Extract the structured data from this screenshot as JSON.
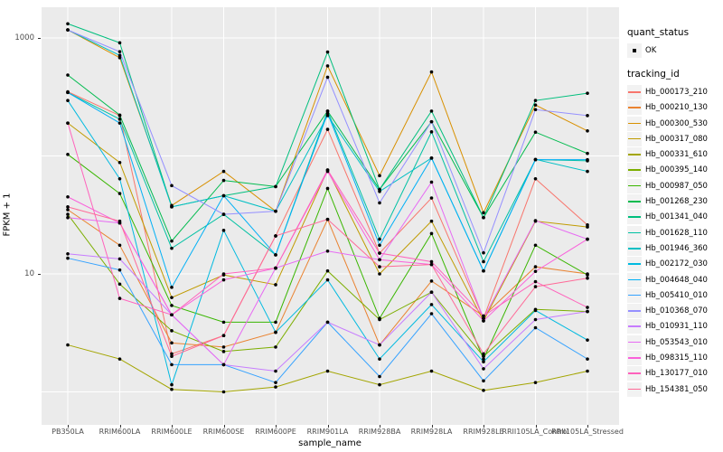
{
  "figure": {
    "panel_bg": "#EBEBEB",
    "grid_color": "#FFFFFF",
    "tick_label_color": "#4D4D4D",
    "point_color": "#000000"
  },
  "axes": {
    "x_title": "sample_name",
    "y_title": "FPKM + 1",
    "y_tick_labels": [
      "1000",
      "10"
    ]
  },
  "legend": {
    "quant_status_title": "quant_status",
    "quant_status_items": [
      "OK"
    ],
    "tracking_id_title": "tracking_id",
    "key_bg": "#F2F2F2"
  },
  "chart_data": {
    "type": "line",
    "title": "",
    "xlabel": "sample_name",
    "ylabel": "FPKM + 1",
    "y_scale": "log10",
    "ylim": [
      0.9,
      1800
    ],
    "y_ticks": [
      {
        "value": 10,
        "label": "10"
      },
      {
        "value": 1000,
        "label": "1000"
      }
    ],
    "gridlines_y_values": [
      1,
      10,
      100,
      1000
    ],
    "grid": true,
    "legend_position": "right",
    "marker": "black point (quant_status OK) at every sample",
    "categories": [
      "PB350LA",
      "RRIM600LA",
      "RRIM600LE",
      "RRIM600SE",
      "RRIM600PE",
      "RRIM901LA",
      "RRIM928BA",
      "RRIM928LA",
      "RRIM928LE",
      "RRII105LA_Control",
      "RRII105LA_Stressed"
    ],
    "series": [
      {
        "name": "Hb_000173_210",
        "color": "#F8766D",
        "values": [
          350,
          220,
          2.1,
          3.0,
          21,
          168,
          15,
          44,
          4.2,
          64,
          26
        ]
      },
      {
        "name": "Hb_000210_130",
        "color": "#EA8331",
        "values": [
          35,
          17.5,
          2.6,
          2.4,
          3.2,
          29,
          2.5,
          8.7,
          4.4,
          11.5,
          10
        ]
      },
      {
        "name": "Hb_000300_530",
        "color": "#D89000",
        "values": [
          1170,
          680,
          38,
          74,
          34,
          580,
          68,
          515,
          33,
          270,
          163
        ]
      },
      {
        "name": "Hb_000317_080",
        "color": "#C09B00",
        "values": [
          190,
          88,
          6.3,
          9.8,
          8.1,
          76,
          10,
          28,
          4.0,
          28,
          25
        ]
      },
      {
        "name": "Hb_000331_610",
        "color": "#A3A500",
        "values": [
          2.5,
          1.9,
          1.05,
          1.0,
          1.1,
          1.5,
          1.15,
          1.5,
          1.03,
          1.2,
          1.5
        ]
      },
      {
        "name": "Hb_000395_140",
        "color": "#7CAE00",
        "values": [
          32,
          8.2,
          3.3,
          2.2,
          2.4,
          10.6,
          4.1,
          7.0,
          2.0,
          5.0,
          4.8
        ]
      },
      {
        "name": "Hb_000987_050",
        "color": "#39B600",
        "values": [
          103,
          48,
          5.4,
          3.9,
          3.9,
          53,
          4.2,
          22,
          1.9,
          17.5,
          9.8
        ]
      },
      {
        "name": "Hb_001268_230",
        "color": "#00BB4E",
        "values": [
          485,
          222,
          19,
          62,
          55,
          240,
          52,
          195,
          30,
          159,
          105
        ]
      },
      {
        "name": "Hb_001341_040",
        "color": "#00BF7D",
        "values": [
          1320,
          910,
          37,
          46,
          55,
          760,
          52,
          240,
          30,
          295,
          340
        ]
      },
      {
        "name": "Hb_001628_110",
        "color": "#00C1A3",
        "values": [
          345,
          205,
          16.5,
          32,
          14.5,
          240,
          19.7,
          160,
          12.7,
          93,
          91
        ]
      },
      {
        "name": "Hb_001946_360",
        "color": "#00BFC4",
        "values": [
          1170,
          712,
          37,
          46,
          34,
          220,
          50,
          96,
          10.6,
          93.5,
          74
        ]
      },
      {
        "name": "Hb_002172_030",
        "color": "#00BAE0",
        "values": [
          295,
          64,
          1.15,
          23.4,
          3.2,
          8.9,
          1.9,
          5.5,
          1.8,
          4.9,
          2.75
        ]
      },
      {
        "name": "Hb_004648_040",
        "color": "#00B0F6",
        "values": [
          345,
          190,
          7.7,
          46,
          14.5,
          230,
          17.5,
          96,
          10.6,
          93,
          93
        ]
      },
      {
        "name": "Hb_005410_010",
        "color": "#35A2FF",
        "values": [
          13.6,
          10.8,
          1.7,
          1.7,
          1.2,
          3.9,
          1.35,
          4.6,
          1.24,
          3.5,
          1.9
        ]
      },
      {
        "name": "Hb_010368_070",
        "color": "#9590FF",
        "values": [
          1170,
          765,
          56,
          32,
          34,
          465,
          40,
          195,
          15.1,
          247,
          220
        ]
      },
      {
        "name": "Hb_010931_110",
        "color": "#C77CFF",
        "values": [
          14.8,
          13.4,
          4.5,
          1.7,
          1.5,
          3.9,
          2.5,
          7.0,
          1.57,
          4.1,
          4.8
        ]
      },
      {
        "name": "Hb_053543_010",
        "color": "#E76BF3",
        "values": [
          30,
          27,
          4.5,
          1.7,
          11.2,
          15.6,
          13.2,
          60,
          4.2,
          28.3,
          19.7
        ]
      },
      {
        "name": "Hb_098315_110",
        "color": "#FA62DB",
        "values": [
          45,
          27,
          4.5,
          8.9,
          11.2,
          74,
          13.2,
          12,
          4.0,
          10.5,
          19.7
        ]
      },
      {
        "name": "Hb_130177_010",
        "color": "#FF62BC",
        "values": [
          190,
          6.2,
          4.5,
          10,
          11.2,
          76,
          15,
          12.7,
          4.4,
          8.6,
          5.2
        ]
      },
      {
        "name": "Hb_154381_050",
        "color": "#FF6A98",
        "values": [
          37,
          28,
          2.0,
          3.0,
          21,
          29,
          11.5,
          12,
          2.1,
          7.8,
          9.2
        ]
      }
    ]
  }
}
